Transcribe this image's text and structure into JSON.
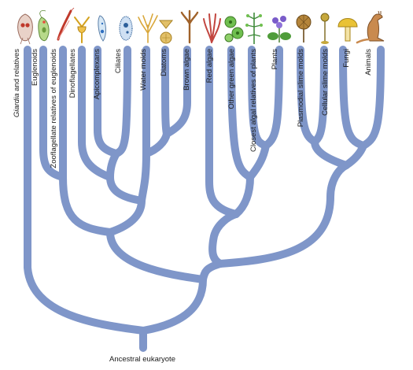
{
  "diagram": {
    "root_label": "Ancestral eukaryote",
    "taxa": [
      {
        "id": "giardia",
        "label": "Giardia and relatives",
        "italic_part": "Giardia",
        "rest": " and relatives"
      },
      {
        "id": "euglenoids",
        "label": "Euglenoids"
      },
      {
        "id": "zooflagellates",
        "label": "Zooflagellate relatives of euglenoids"
      },
      {
        "id": "dinoflagellates",
        "label": "Dinoflagellates"
      },
      {
        "id": "apicomplexans",
        "label": "Apicomplexans"
      },
      {
        "id": "ciliates",
        "label": "Ciliates"
      },
      {
        "id": "water-molds",
        "label": "Water molds"
      },
      {
        "id": "diatoms",
        "label": "Diatoms"
      },
      {
        "id": "brown-algae",
        "label": "Brown algae"
      },
      {
        "id": "red-algae",
        "label": "Red algae"
      },
      {
        "id": "other-green-algae",
        "label": "Other green algae"
      },
      {
        "id": "closest-algal",
        "label": "Closest algal relatives of plants"
      },
      {
        "id": "plants",
        "label": "Plants"
      },
      {
        "id": "plasmodial",
        "label": "Plasmodial slime molds"
      },
      {
        "id": "cellular",
        "label": "Cellular slime molds"
      },
      {
        "id": "fungi",
        "label": "Fungi"
      },
      {
        "id": "animals",
        "label": "Animals"
      }
    ],
    "colors": {
      "branch": "#7f96c9",
      "text": "#1a1a1a"
    },
    "icons": [
      "giardia-icon",
      "euglena-icon",
      "trypanosome-icon",
      "dinoflagellate-icon",
      "apicomplexan-icon",
      "ciliate-icon",
      "water-mold-icon",
      "diatom-icon",
      "brown-alga-icon",
      "red-alga-icon",
      "green-alga-icon",
      "charophyte-icon",
      "plant-icon",
      "plasmodial-slime-mold-icon",
      "cellular-slime-mold-icon",
      "mushroom-icon",
      "kangaroo-icon"
    ]
  }
}
